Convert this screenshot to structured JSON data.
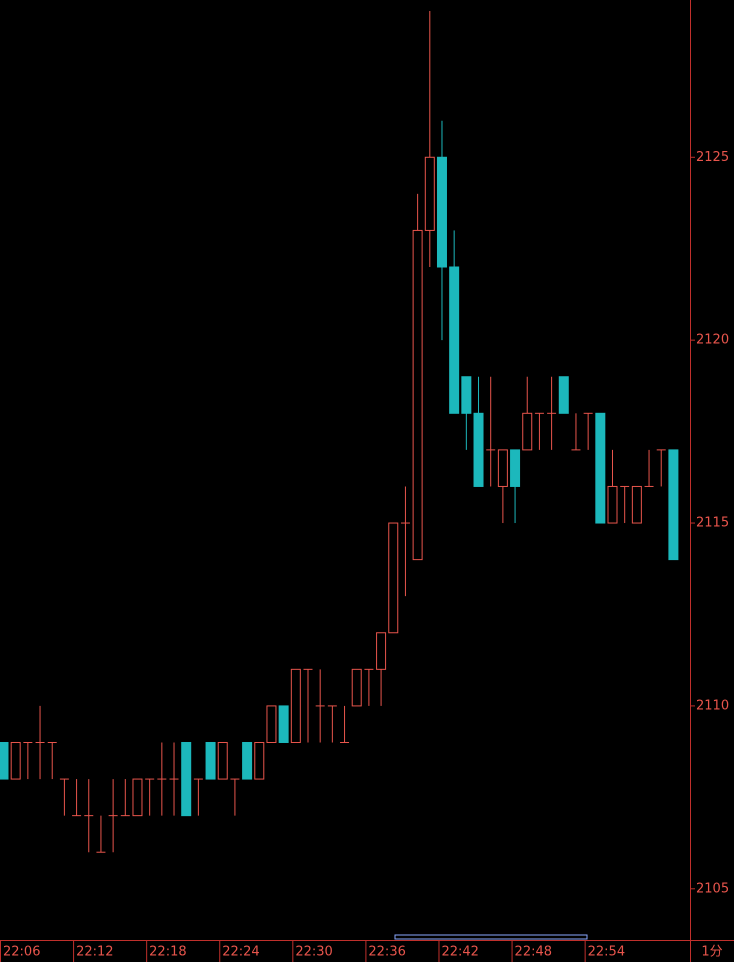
{
  "chart_data": {
    "type": "candlestick",
    "period": "1分",
    "categories": [
      "22:06",
      null,
      null,
      null,
      null,
      null,
      "22:12",
      null,
      null,
      null,
      null,
      null,
      "22:18",
      null,
      null,
      null,
      null,
      null,
      "22:24",
      null,
      null,
      null,
      null,
      null,
      "22:30",
      null,
      null,
      null,
      null,
      null,
      "22:36",
      null,
      null,
      null,
      null,
      null,
      "22:42",
      null,
      null,
      null,
      null,
      null,
      "22:48",
      null,
      null,
      null,
      null,
      null,
      "22:54",
      null,
      null,
      null,
      null,
      null,
      null,
      null
    ],
    "open": [
      2109,
      2108,
      2109,
      2109,
      2109,
      2108,
      2107,
      2107,
      2106,
      2107,
      2107,
      2107,
      2108,
      2108,
      2108,
      2109,
      2108,
      2109,
      2108,
      2108,
      2109,
      2108,
      2109,
      2110,
      2109,
      2111,
      2110,
      2110,
      2109,
      2110,
      2111,
      2111,
      2112,
      2115,
      2114,
      2123,
      2125,
      2122,
      2119,
      2118,
      2117,
      2116,
      2117,
      2117,
      2118,
      2118,
      2119,
      2117,
      2118,
      2118,
      2115,
      2116,
      2115,
      2116,
      2117,
      2117
    ],
    "high": [
      2109,
      2109,
      2109,
      2110,
      2109,
      2108,
      2108,
      2108,
      2107,
      2108,
      2108,
      2108,
      2108,
      2109,
      2109,
      2109,
      2108,
      2109,
      2109,
      2108,
      2109,
      2109,
      2110,
      2110,
      2111,
      2111,
      2111,
      2110,
      2110,
      2111,
      2111,
      2112,
      2115,
      2116,
      2124,
      2129,
      2126,
      2123,
      2119,
      2119,
      2119,
      2117,
      2117,
      2119,
      2118,
      2119,
      2119,
      2118,
      2118,
      2118,
      2117,
      2116,
      2116,
      2117,
      2117,
      2117
    ],
    "low": [
      2108,
      2108,
      2108,
      2108,
      2108,
      2107,
      2107,
      2106,
      2106,
      2106,
      2107,
      2107,
      2107,
      2107,
      2107,
      2107,
      2107,
      2108,
      2108,
      2107,
      2108,
      2108,
      2109,
      2109,
      2109,
      2109,
      2109,
      2109,
      2109,
      2110,
      2110,
      2110,
      2112,
      2113,
      2114,
      2122,
      2120,
      2118,
      2117,
      2116,
      2116,
      2115,
      2115,
      2117,
      2117,
      2117,
      2118,
      2117,
      2117,
      2115,
      2115,
      2115,
      2115,
      2116,
      2116,
      2114
    ],
    "close": [
      2108,
      2109,
      2109,
      2109,
      2109,
      2108,
      2107,
      2107,
      2106,
      2107,
      2107,
      2108,
      2108,
      2108,
      2108,
      2107,
      2108,
      2108,
      2109,
      2108,
      2108,
      2109,
      2110,
      2109,
      2111,
      2111,
      2110,
      2110,
      2109,
      2111,
      2111,
      2112,
      2115,
      2115,
      2123,
      2125,
      2122,
      2118,
      2118,
      2116,
      2117,
      2117,
      2116,
      2118,
      2118,
      2118,
      2118,
      2117,
      2118,
      2115,
      2116,
      2116,
      2116,
      2116,
      2117,
      2114
    ],
    "up_color": "#e8554c",
    "down_color": "#1cb8bc",
    "ylim": [
      2103.6,
      2129.3
    ],
    "yticks": [
      2105,
      2110,
      2115,
      2120,
      2125
    ]
  }
}
